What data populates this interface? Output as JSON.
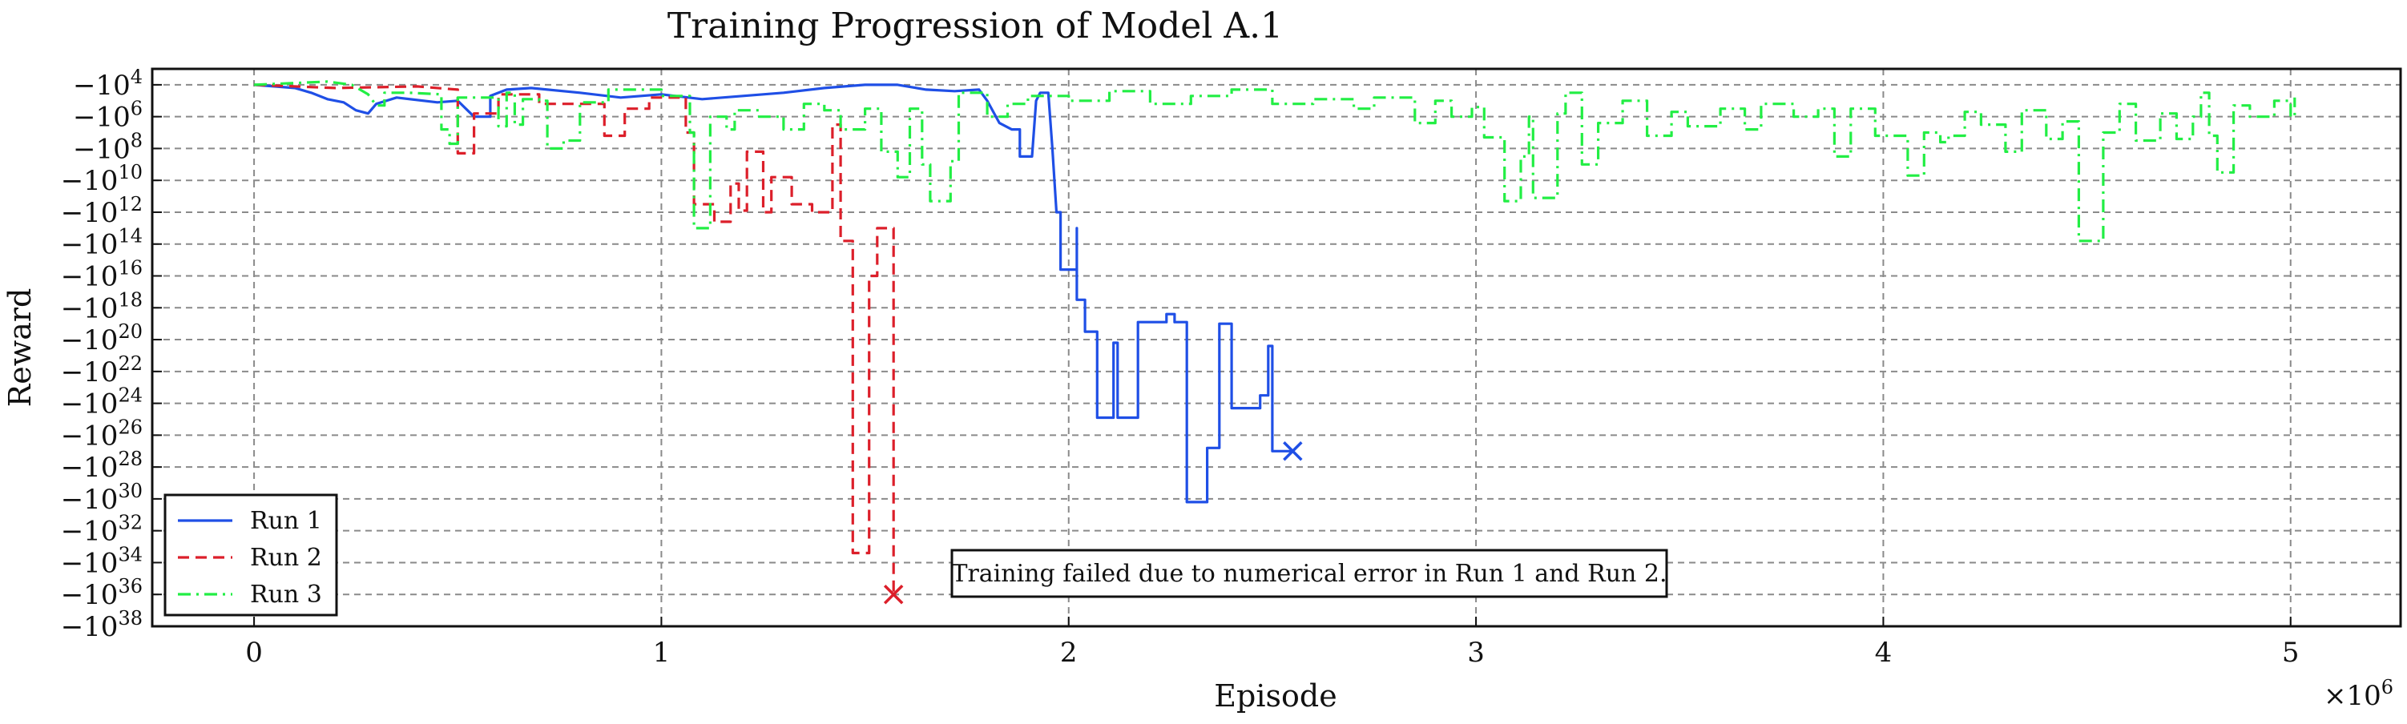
{
  "chart_data": {
    "type": "line",
    "title": "Training Progression of Model A.1",
    "xlabel": "Episode",
    "ylabel": "Reward",
    "x_multiplier_label": "×10^6",
    "xlim": [
      -0.25,
      5.27
    ],
    "ylim_exponent": [
      3,
      38
    ],
    "y_scale": "symlog-negative",
    "grid": true,
    "legend_position": "lower-left",
    "x_ticks": [
      0,
      1,
      2,
      3,
      4,
      5
    ],
    "y_tick_exponents": [
      4,
      6,
      8,
      10,
      12,
      14,
      16,
      18,
      20,
      22,
      24,
      26,
      28,
      30,
      32,
      34,
      36,
      38
    ],
    "annotation": "Training failed due to numerical error in Run 1 and Run 2.",
    "series": [
      {
        "name": "Run 1",
        "color": "#1f4fe6",
        "style": "solid",
        "end_marker": "x",
        "points": [
          [
            0.0,
            4.0
          ],
          [
            0.1,
            4.2
          ],
          [
            0.14,
            4.5
          ],
          [
            0.18,
            4.9
          ],
          [
            0.22,
            5.1
          ],
          [
            0.25,
            5.6
          ],
          [
            0.28,
            5.8
          ],
          [
            0.3,
            5.2
          ],
          [
            0.35,
            4.8
          ],
          [
            0.45,
            5.1
          ],
          [
            0.5,
            5.0
          ],
          [
            0.54,
            6.0
          ],
          [
            0.58,
            6.0
          ],
          [
            0.58,
            4.7
          ],
          [
            0.62,
            4.3
          ],
          [
            0.68,
            4.2
          ],
          [
            0.8,
            4.5
          ],
          [
            0.9,
            4.8
          ],
          [
            1.0,
            4.6
          ],
          [
            1.1,
            4.9
          ],
          [
            1.2,
            4.7
          ],
          [
            1.3,
            4.5
          ],
          [
            1.4,
            4.2
          ],
          [
            1.5,
            4.0
          ],
          [
            1.58,
            4.0
          ],
          [
            1.65,
            4.3
          ],
          [
            1.72,
            4.4
          ],
          [
            1.78,
            4.3
          ],
          [
            1.8,
            5.0
          ],
          [
            1.83,
            6.4
          ],
          [
            1.86,
            6.8
          ],
          [
            1.88,
            6.8
          ],
          [
            1.88,
            8.5
          ],
          [
            1.91,
            8.5
          ],
          [
            1.92,
            5.0
          ],
          [
            1.93,
            4.5
          ],
          [
            1.95,
            4.5
          ],
          [
            1.96,
            8.0
          ],
          [
            1.97,
            12.0
          ],
          [
            1.98,
            12.0
          ],
          [
            1.98,
            15.6
          ],
          [
            2.02,
            15.6
          ],
          [
            2.02,
            13.0
          ],
          [
            2.02,
            17.5
          ],
          [
            2.04,
            17.5
          ],
          [
            2.04,
            19.5
          ],
          [
            2.07,
            19.5
          ],
          [
            2.07,
            24.9
          ],
          [
            2.11,
            24.9
          ],
          [
            2.11,
            20.2
          ],
          [
            2.12,
            20.2
          ],
          [
            2.12,
            24.9
          ],
          [
            2.17,
            24.9
          ],
          [
            2.17,
            18.9
          ],
          [
            2.24,
            18.9
          ],
          [
            2.24,
            18.4
          ],
          [
            2.26,
            18.4
          ],
          [
            2.26,
            18.9
          ],
          [
            2.29,
            18.9
          ],
          [
            2.29,
            30.2
          ],
          [
            2.34,
            30.2
          ],
          [
            2.34,
            26.8
          ],
          [
            2.37,
            26.8
          ],
          [
            2.37,
            19.0
          ],
          [
            2.4,
            19.0
          ],
          [
            2.4,
            24.3
          ],
          [
            2.47,
            24.3
          ],
          [
            2.47,
            23.5
          ],
          [
            2.49,
            23.5
          ],
          [
            2.49,
            20.4
          ],
          [
            2.5,
            20.4
          ],
          [
            2.5,
            27.0
          ],
          [
            2.55,
            27.0
          ]
        ]
      },
      {
        "name": "Run 2",
        "color": "#dc1f2a",
        "style": "dashed",
        "end_marker": "x",
        "points": [
          [
            0.0,
            4.0
          ],
          [
            0.2,
            4.2
          ],
          [
            0.4,
            4.1
          ],
          [
            0.5,
            4.3
          ],
          [
            0.5,
            8.3
          ],
          [
            0.54,
            8.3
          ],
          [
            0.54,
            5.8
          ],
          [
            0.6,
            5.8
          ],
          [
            0.6,
            4.6
          ],
          [
            0.7,
            4.6
          ],
          [
            0.7,
            5.2
          ],
          [
            0.86,
            5.2
          ],
          [
            0.86,
            7.2
          ],
          [
            0.91,
            7.2
          ],
          [
            0.91,
            5.5
          ],
          [
            0.97,
            5.5
          ],
          [
            0.97,
            4.8
          ],
          [
            1.06,
            4.8
          ],
          [
            1.06,
            7.0
          ],
          [
            1.08,
            7.0
          ],
          [
            1.08,
            11.5
          ],
          [
            1.13,
            11.5
          ],
          [
            1.13,
            12.6
          ],
          [
            1.17,
            12.6
          ],
          [
            1.17,
            10.2
          ],
          [
            1.19,
            10.2
          ],
          [
            1.19,
            11.9
          ],
          [
            1.21,
            11.9
          ],
          [
            1.21,
            8.2
          ],
          [
            1.25,
            8.2
          ],
          [
            1.25,
            12.0
          ],
          [
            1.27,
            12.0
          ],
          [
            1.27,
            9.8
          ],
          [
            1.32,
            9.8
          ],
          [
            1.32,
            11.5
          ],
          [
            1.37,
            11.5
          ],
          [
            1.37,
            12.0
          ],
          [
            1.42,
            12.0
          ],
          [
            1.42,
            6.5
          ],
          [
            1.44,
            6.5
          ],
          [
            1.44,
            13.8
          ],
          [
            1.47,
            13.8
          ],
          [
            1.47,
            33.4
          ],
          [
            1.51,
            33.4
          ],
          [
            1.51,
            16.0
          ],
          [
            1.53,
            16.0
          ],
          [
            1.53,
            13.0
          ],
          [
            1.57,
            13.0
          ],
          [
            1.57,
            36.0
          ]
        ]
      },
      {
        "name": "Run 3",
        "color": "#22ee44",
        "style": "dashdot",
        "end_marker": "",
        "points": [
          [
            0.0,
            4.0
          ],
          [
            0.18,
            3.8
          ],
          [
            0.24,
            4.0
          ],
          [
            0.28,
            4.6
          ],
          [
            0.3,
            5.3
          ],
          [
            0.32,
            5.3
          ],
          [
            0.32,
            4.5
          ],
          [
            0.38,
            4.5
          ],
          [
            0.46,
            4.6
          ],
          [
            0.46,
            6.8
          ],
          [
            0.48,
            6.8
          ],
          [
            0.48,
            7.7
          ],
          [
            0.5,
            7.7
          ],
          [
            0.5,
            4.8
          ],
          [
            0.6,
            4.8
          ],
          [
            0.6,
            6.6
          ],
          [
            0.62,
            6.6
          ],
          [
            0.62,
            4.5
          ],
          [
            0.64,
            4.5
          ],
          [
            0.64,
            6.5
          ],
          [
            0.66,
            6.5
          ],
          [
            0.66,
            4.9
          ],
          [
            0.7,
            4.9
          ],
          [
            0.7,
            5.0
          ],
          [
            0.72,
            5.0
          ],
          [
            0.72,
            8.0
          ],
          [
            0.76,
            8.0
          ],
          [
            0.76,
            7.5
          ],
          [
            0.8,
            7.5
          ],
          [
            0.8,
            5.1
          ],
          [
            0.87,
            5.1
          ],
          [
            0.87,
            4.3
          ],
          [
            1.0,
            4.3
          ],
          [
            1.0,
            4.7
          ],
          [
            1.07,
            4.7
          ],
          [
            1.07,
            7.0
          ],
          [
            1.08,
            7.0
          ],
          [
            1.08,
            13.0
          ],
          [
            1.12,
            13.0
          ],
          [
            1.12,
            6.0
          ],
          [
            1.16,
            6.0
          ],
          [
            1.16,
            6.8
          ],
          [
            1.18,
            6.8
          ],
          [
            1.18,
            5.6
          ],
          [
            1.24,
            5.6
          ],
          [
            1.24,
            6.0
          ],
          [
            1.3,
            6.0
          ],
          [
            1.3,
            6.8
          ],
          [
            1.35,
            6.8
          ],
          [
            1.35,
            5.2
          ],
          [
            1.4,
            5.2
          ],
          [
            1.4,
            5.6
          ],
          [
            1.44,
            5.6
          ],
          [
            1.44,
            6.8
          ],
          [
            1.5,
            6.8
          ],
          [
            1.5,
            5.5
          ],
          [
            1.54,
            5.5
          ],
          [
            1.54,
            8.2
          ],
          [
            1.58,
            8.2
          ],
          [
            1.58,
            9.8
          ],
          [
            1.61,
            9.8
          ],
          [
            1.61,
            5.5
          ],
          [
            1.64,
            5.5
          ],
          [
            1.64,
            9.0
          ],
          [
            1.66,
            9.0
          ],
          [
            1.66,
            11.3
          ],
          [
            1.71,
            11.3
          ],
          [
            1.71,
            8.8
          ],
          [
            1.73,
            8.8
          ],
          [
            1.73,
            4.5
          ],
          [
            1.8,
            4.5
          ],
          [
            1.8,
            6.0
          ],
          [
            1.85,
            6.0
          ],
          [
            1.85,
            5.2
          ],
          [
            1.9,
            5.2
          ],
          [
            1.9,
            4.7
          ],
          [
            2.0,
            4.7
          ],
          [
            2.0,
            5.0
          ],
          [
            2.1,
            5.0
          ],
          [
            2.1,
            4.4
          ],
          [
            2.2,
            4.4
          ],
          [
            2.2,
            5.2
          ],
          [
            2.3,
            5.2
          ],
          [
            2.3,
            4.7
          ],
          [
            2.4,
            4.7
          ],
          [
            2.4,
            4.3
          ],
          [
            2.5,
            4.3
          ],
          [
            2.5,
            5.2
          ],
          [
            2.6,
            5.2
          ],
          [
            2.6,
            4.9
          ],
          [
            2.7,
            4.9
          ],
          [
            2.7,
            5.5
          ],
          [
            2.75,
            5.5
          ],
          [
            2.75,
            4.8
          ],
          [
            2.85,
            4.8
          ],
          [
            2.85,
            6.4
          ],
          [
            2.9,
            6.4
          ],
          [
            2.9,
            5.0
          ],
          [
            2.94,
            5.0
          ],
          [
            2.94,
            6.0
          ],
          [
            2.99,
            6.0
          ],
          [
            2.99,
            5.4
          ],
          [
            3.02,
            5.4
          ],
          [
            3.02,
            7.3
          ],
          [
            3.07,
            7.3
          ],
          [
            3.07,
            11.3
          ],
          [
            3.11,
            11.3
          ],
          [
            3.11,
            8.5
          ],
          [
            3.13,
            8.5
          ],
          [
            3.13,
            6.0
          ],
          [
            3.14,
            6.0
          ],
          [
            3.14,
            11.1
          ],
          [
            3.2,
            11.1
          ],
          [
            3.2,
            5.8
          ],
          [
            3.22,
            5.8
          ],
          [
            3.22,
            4.5
          ],
          [
            3.26,
            4.5
          ],
          [
            3.26,
            9.0
          ],
          [
            3.3,
            9.0
          ],
          [
            3.3,
            6.4
          ],
          [
            3.36,
            6.4
          ],
          [
            3.36,
            5.0
          ],
          [
            3.42,
            5.0
          ],
          [
            3.42,
            7.2
          ],
          [
            3.48,
            7.2
          ],
          [
            3.48,
            5.7
          ],
          [
            3.52,
            5.7
          ],
          [
            3.52,
            6.6
          ],
          [
            3.6,
            6.6
          ],
          [
            3.6,
            5.5
          ],
          [
            3.66,
            5.5
          ],
          [
            3.66,
            6.8
          ],
          [
            3.7,
            6.8
          ],
          [
            3.7,
            5.2
          ],
          [
            3.78,
            5.2
          ],
          [
            3.78,
            6.0
          ],
          [
            3.84,
            6.0
          ],
          [
            3.84,
            5.5
          ],
          [
            3.88,
            5.5
          ],
          [
            3.88,
            8.5
          ],
          [
            3.92,
            8.5
          ],
          [
            3.92,
            5.5
          ],
          [
            3.98,
            5.5
          ],
          [
            3.98,
            7.2
          ],
          [
            4.06,
            7.2
          ],
          [
            4.06,
            9.7
          ],
          [
            4.1,
            9.7
          ],
          [
            4.1,
            7.0
          ],
          [
            4.14,
            7.0
          ],
          [
            4.14,
            7.6
          ],
          [
            4.16,
            7.6
          ],
          [
            4.16,
            7.2
          ],
          [
            4.2,
            7.2
          ],
          [
            4.2,
            5.7
          ],
          [
            4.24,
            5.7
          ],
          [
            4.24,
            6.5
          ],
          [
            4.3,
            6.5
          ],
          [
            4.3,
            8.2
          ],
          [
            4.34,
            8.2
          ],
          [
            4.34,
            5.6
          ],
          [
            4.4,
            5.6
          ],
          [
            4.4,
            7.4
          ],
          [
            4.44,
            7.4
          ],
          [
            4.44,
            6.3
          ],
          [
            4.48,
            6.3
          ],
          [
            4.48,
            13.8
          ],
          [
            4.54,
            13.8
          ],
          [
            4.54,
            7.0
          ],
          [
            4.58,
            7.0
          ],
          [
            4.58,
            5.2
          ],
          [
            4.62,
            5.2
          ],
          [
            4.62,
            7.5
          ],
          [
            4.68,
            7.5
          ],
          [
            4.68,
            5.8
          ],
          [
            4.72,
            5.8
          ],
          [
            4.72,
            7.4
          ],
          [
            4.76,
            7.4
          ],
          [
            4.76,
            6.0
          ],
          [
            4.78,
            6.0
          ],
          [
            4.78,
            4.5
          ],
          [
            4.8,
            4.5
          ],
          [
            4.8,
            7.2
          ],
          [
            4.82,
            7.2
          ],
          [
            4.82,
            9.5
          ],
          [
            4.86,
            9.5
          ],
          [
            4.86,
            5.3
          ],
          [
            4.9,
            5.3
          ],
          [
            4.9,
            6.0
          ],
          [
            4.96,
            6.0
          ],
          [
            4.96,
            5.0
          ],
          [
            5.0,
            5.0
          ],
          [
            5.0,
            6.0
          ],
          [
            5.01,
            6.0
          ],
          [
            5.01,
            4.8
          ]
        ]
      }
    ]
  }
}
